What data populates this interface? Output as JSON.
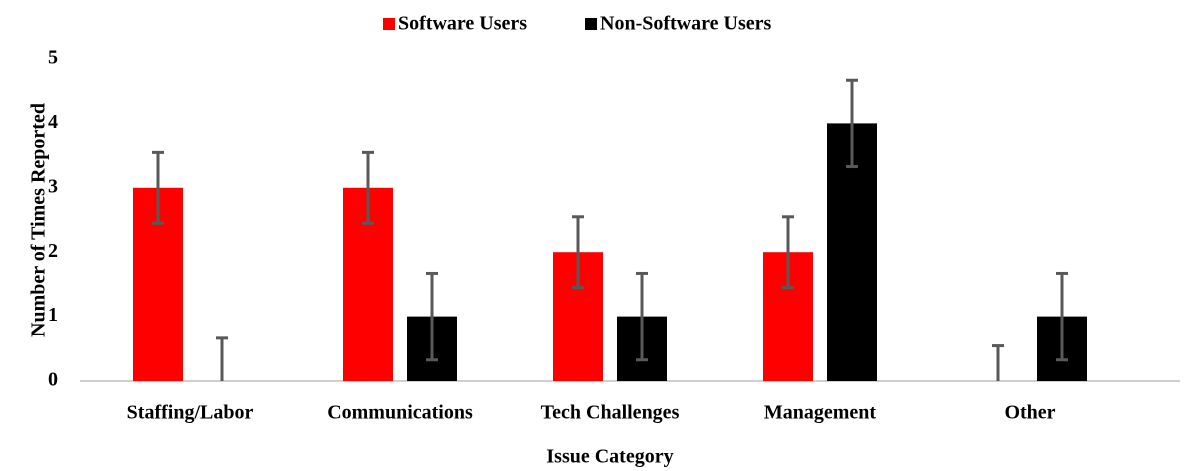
{
  "chart_data": {
    "type": "bar",
    "x_label": "Issue Category",
    "y_label": "Number of Times Reported",
    "categories": [
      "Staffing/Labor",
      "Communications",
      "Tech Challenges",
      "Management",
      "Other"
    ],
    "series": [
      {
        "name": "Software Users",
        "color": "#ff0000",
        "values": [
          3,
          3,
          2,
          2,
          0
        ],
        "errors": [
          0.55,
          0.55,
          0.55,
          0.55,
          0.55
        ]
      },
      {
        "name": "Non-Software Users",
        "color": "#000000",
        "values": [
          0,
          1,
          1,
          4,
          1
        ],
        "errors": [
          0.67,
          0.67,
          0.67,
          0.67,
          0.67
        ]
      }
    ],
    "ylim": [
      0,
      5
    ],
    "yticks": [
      0,
      1,
      2,
      3,
      4,
      5
    ],
    "grid": false,
    "legend": "top"
  }
}
